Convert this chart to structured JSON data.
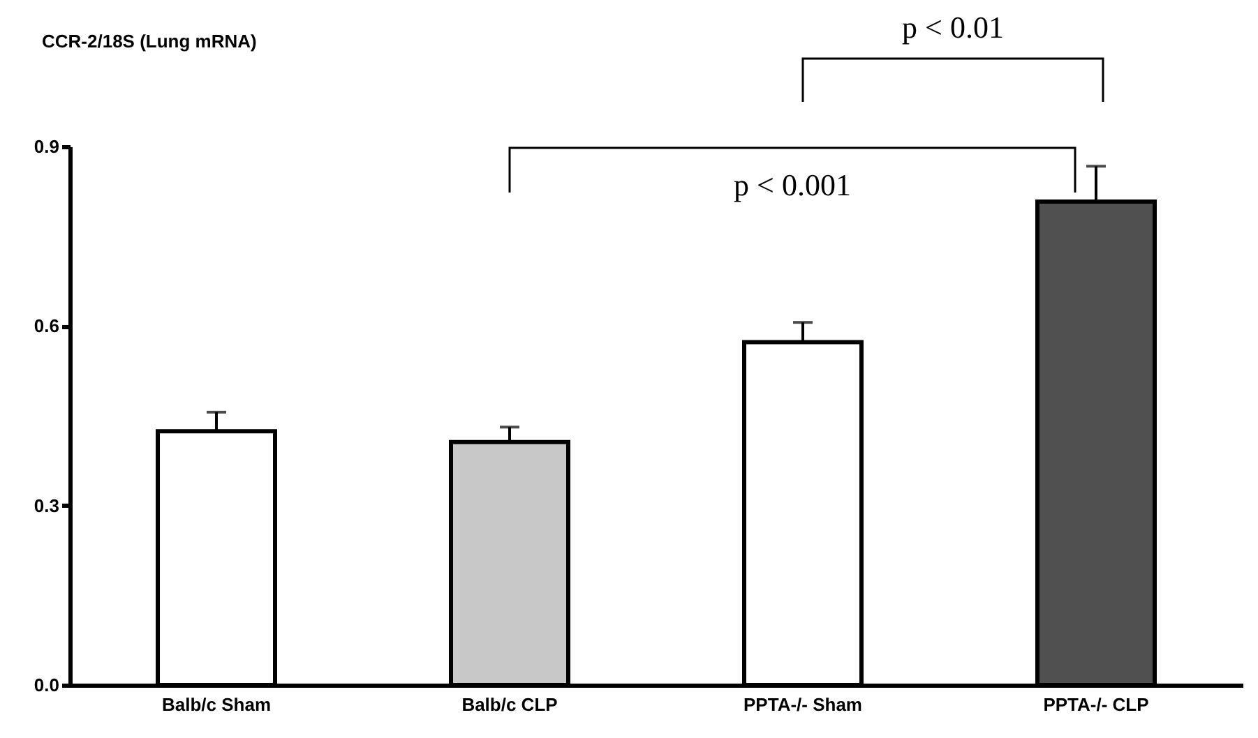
{
  "chart_data": {
    "type": "bar",
    "title": "CCR-2/18S (Lung mRNA)",
    "categories": [
      "Balb/c Sham",
      "Balb/c CLP",
      "PPTA-/- Sham",
      "PPTA-/- CLP"
    ],
    "values": [
      0.424,
      0.406,
      0.573,
      0.808
    ],
    "errors": [
      [
        0.424,
        0.456
      ],
      [
        0.406,
        0.431
      ],
      [
        0.573,
        0.606
      ],
      [
        0.808,
        0.867
      ]
    ],
    "colors": [
      "#ffffff",
      "#c8c8c8",
      "#ffffff",
      "#505050"
    ],
    "ylim": [
      0,
      0.9
    ],
    "yticks": [
      {
        "value": 0,
        "label": "0.0"
      },
      {
        "value": 0.3,
        "label": "0.3"
      },
      {
        "value": 0.6,
        "label": "0.6"
      },
      {
        "value": 0.9,
        "label": "0.9"
      }
    ],
    "annotations": [
      "p < 0.001",
      "p < 0.01"
    ],
    "grid": false,
    "legend": false
  }
}
